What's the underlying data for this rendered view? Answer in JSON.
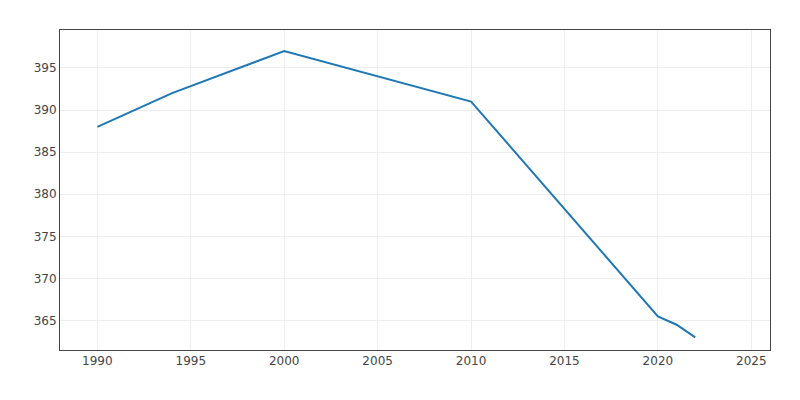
{
  "chart_data": {
    "type": "line",
    "x": [
      1990,
      1994,
      2000,
      2005,
      2010,
      2020,
      2021,
      2022
    ],
    "values": [
      388,
      392,
      397,
      394,
      391,
      365.5,
      364.5,
      363
    ],
    "xlim": [
      1988,
      2026
    ],
    "ylim": [
      361.5,
      399.5
    ],
    "xticks": [
      1990,
      1995,
      2000,
      2005,
      2010,
      2015,
      2020,
      2025
    ],
    "yticks": [
      365,
      370,
      375,
      380,
      385,
      390,
      395
    ],
    "grid": true
  }
}
